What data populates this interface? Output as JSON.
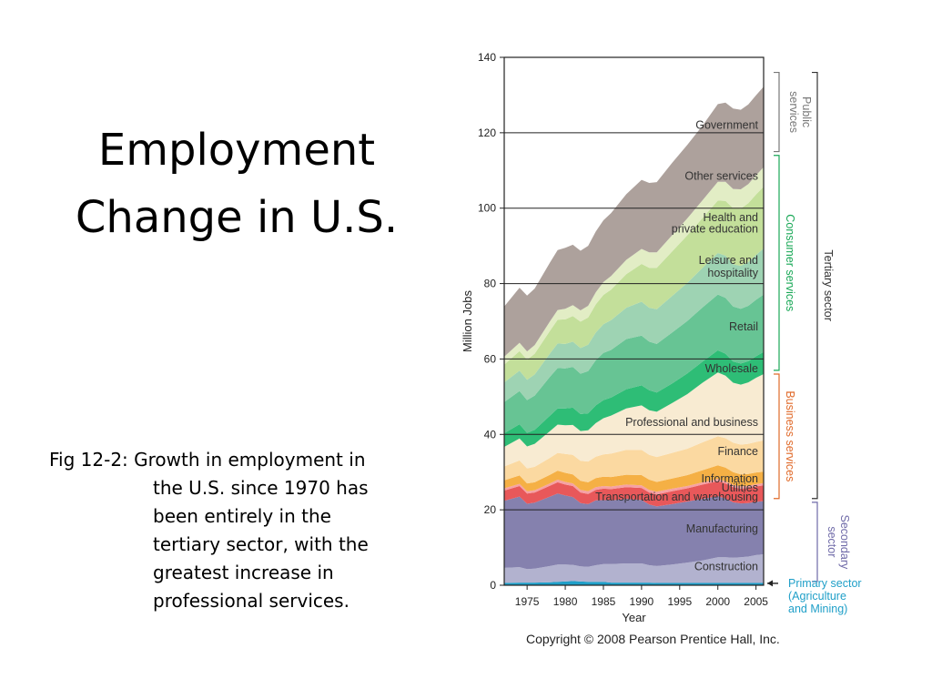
{
  "slide": {
    "title_line1": "Employment",
    "title_line2": "Change in U.S.",
    "caption": "Fig 12-2: Growth in employment in the U.S. since 1970 has been entirely in the tertiary sector, with the greatest increase in professional services.",
    "copyright": "Copyright © 2008 Pearson Prentice Hall, Inc."
  },
  "chart_data": {
    "type": "area",
    "stacked": true,
    "title": "",
    "xlabel": "Year",
    "ylabel": "Million Jobs",
    "xlim": [
      1972,
      2006
    ],
    "ylim": [
      0,
      140
    ],
    "xticks": [
      1975,
      1980,
      1985,
      1990,
      1995,
      2000,
      2005
    ],
    "yticks": [
      0,
      20,
      40,
      60,
      80,
      100,
      120,
      140
    ],
    "grid": "horizontal",
    "x": [
      1972,
      1974,
      1975,
      1976,
      1978,
      1979,
      1980,
      1981,
      1982,
      1983,
      1984,
      1985,
      1986,
      1988,
      1990,
      1991,
      1992,
      1994,
      1996,
      1998,
      2000,
      2001,
      2002,
      2003,
      2004,
      2005,
      2006
    ],
    "series": [
      {
        "name": "Primary sector (Agriculture and Mining)",
        "color": "#1f9fc8",
        "values": [
          0.6,
          0.7,
          0.7,
          0.7,
          0.8,
          0.9,
          1.0,
          1.1,
          1.0,
          0.9,
          0.9,
          0.9,
          0.7,
          0.7,
          0.7,
          0.7,
          0.6,
          0.6,
          0.6,
          0.6,
          0.6,
          0.6,
          0.6,
          0.6,
          0.6,
          0.6,
          0.6
        ]
      },
      {
        "name": "Construction",
        "color": "#b2b2cf",
        "values": [
          4.0,
          4.1,
          3.6,
          3.7,
          4.3,
          4.6,
          4.5,
          4.3,
          4.0,
          4.0,
          4.4,
          4.7,
          4.9,
          5.1,
          5.1,
          4.6,
          4.5,
          4.9,
          5.4,
          6.0,
          6.8,
          6.8,
          6.7,
          6.8,
          7.0,
          7.4,
          7.6
        ]
      },
      {
        "name": "Manufacturing",
        "color": "#8581ae",
        "values": [
          17.8,
          18.7,
          17.3,
          17.5,
          18.4,
          18.8,
          18.3,
          18.0,
          16.8,
          16.6,
          17.2,
          17.0,
          16.9,
          17.1,
          16.8,
          16.1,
          15.8,
          16.0,
          16.2,
          16.3,
          16.2,
          15.6,
          14.7,
          14.3,
          14.2,
          14.1,
          14.1
        ]
      },
      {
        "name": "Transportation and warehousing",
        "color": "#e8585a",
        "values": [
          2.7,
          2.8,
          2.7,
          2.7,
          2.9,
          3.0,
          2.9,
          2.9,
          2.8,
          2.7,
          2.8,
          3.0,
          3.0,
          3.1,
          3.2,
          3.2,
          3.2,
          3.4,
          3.5,
          3.8,
          4.0,
          4.0,
          4.0,
          3.9,
          4.0,
          4.1,
          4.2
        ]
      },
      {
        "name": "Utilities",
        "color": "#f6a1a4",
        "values": [
          0.6,
          0.6,
          0.6,
          0.6,
          0.6,
          0.7,
          0.7,
          0.7,
          0.7,
          0.7,
          0.7,
          0.7,
          0.7,
          0.7,
          0.7,
          0.7,
          0.7,
          0.7,
          0.6,
          0.6,
          0.6,
          0.6,
          0.6,
          0.6,
          0.6,
          0.6,
          0.6
        ]
      },
      {
        "name": "Information",
        "color": "#f5b045",
        "values": [
          2.1,
          2.2,
          2.1,
          2.1,
          2.3,
          2.4,
          2.4,
          2.4,
          2.4,
          2.4,
          2.4,
          2.5,
          2.5,
          2.6,
          2.7,
          2.7,
          2.6,
          2.7,
          2.9,
          3.2,
          3.6,
          3.6,
          3.4,
          3.2,
          3.1,
          3.1,
          3.0
        ]
      },
      {
        "name": "Finance",
        "color": "#fbd9a1",
        "values": [
          3.7,
          4.0,
          4.0,
          4.1,
          4.5,
          4.7,
          5.0,
          5.2,
          5.3,
          5.5,
          5.7,
          5.9,
          6.2,
          6.6,
          6.7,
          6.6,
          6.6,
          6.8,
          7.0,
          7.4,
          7.7,
          7.8,
          7.8,
          7.9,
          8.0,
          8.1,
          8.3
        ]
      },
      {
        "name": "Professional and business",
        "color": "#f8ebd2",
        "values": [
          5.2,
          5.8,
          5.8,
          6.1,
          7.1,
          7.5,
          7.6,
          7.9,
          7.9,
          8.3,
          8.9,
          9.6,
          10.1,
          11.0,
          11.8,
          11.8,
          12.0,
          13.2,
          14.5,
          15.8,
          16.9,
          16.6,
          15.9,
          15.9,
          16.3,
          17.0,
          17.6
        ]
      },
      {
        "name": "Wholesale",
        "color": "#2ebd76",
        "values": [
          3.6,
          3.8,
          3.6,
          3.7,
          4.1,
          4.3,
          4.5,
          4.6,
          4.5,
          4.5,
          4.7,
          4.8,
          4.8,
          5.1,
          5.3,
          5.3,
          5.1,
          5.2,
          5.5,
          5.6,
          5.9,
          5.8,
          5.6,
          5.6,
          5.6,
          5.7,
          5.9
        ]
      },
      {
        "name": "Retail",
        "color": "#67c494",
        "values": [
          8.3,
          8.8,
          8.7,
          9.1,
          10.3,
          10.7,
          10.6,
          10.8,
          10.7,
          11.2,
          12.0,
          12.5,
          12.6,
          13.3,
          13.2,
          12.9,
          12.9,
          13.5,
          13.9,
          14.4,
          14.8,
          14.8,
          14.6,
          14.5,
          14.7,
          15.0,
          15.2
        ]
      },
      {
        "name": "Leisure and hospitality",
        "color": "#9ed3b3",
        "values": [
          5.2,
          5.4,
          5.4,
          5.6,
          6.2,
          6.5,
          6.5,
          6.7,
          6.8,
          7.0,
          7.3,
          7.6,
          7.9,
          8.3,
          9.0,
          9.0,
          9.2,
          9.7,
          10.1,
          10.5,
          11.0,
          11.2,
          11.2,
          11.4,
          11.6,
          11.9,
          12.2
        ]
      },
      {
        "name": "Health and private education",
        "color": "#c3df9a",
        "values": [
          4.7,
          5.2,
          5.3,
          5.5,
          6.0,
          6.3,
          6.5,
          6.8,
          7.0,
          7.2,
          7.5,
          7.8,
          8.1,
          8.9,
          10.0,
          10.6,
          11.0,
          11.8,
          12.6,
          13.2,
          13.9,
          14.5,
          14.9,
          15.2,
          15.6,
          16.0,
          16.4
        ]
      },
      {
        "name": "Other services",
        "color": "#e2edc5",
        "values": [
          2.1,
          2.2,
          2.2,
          2.3,
          2.5,
          2.6,
          2.8,
          2.9,
          3.0,
          3.1,
          3.2,
          3.4,
          3.6,
          3.8,
          4.0,
          4.1,
          4.1,
          4.3,
          4.5,
          4.7,
          5.0,
          5.1,
          5.1,
          5.1,
          5.1,
          5.1,
          5.2
        ]
      },
      {
        "name": "Government",
        "color": "#ada19c",
        "values": [
          13.3,
          14.6,
          14.8,
          15.0,
          15.6,
          15.9,
          16.2,
          16.0,
          15.8,
          15.9,
          16.1,
          16.4,
          16.7,
          17.4,
          18.3,
          18.4,
          18.6,
          19.2,
          19.5,
          19.8,
          20.6,
          21.0,
          21.3,
          21.1,
          21.1,
          21.2,
          21.3
        ]
      }
    ],
    "labels": [
      {
        "text": "Government",
        "color": "#333333"
      },
      {
        "text": "Other services",
        "color": "#333333"
      },
      {
        "text": "Health and",
        "color": "#333333"
      },
      {
        "text": "private education",
        "color": "#333333"
      },
      {
        "text": "Leisure and",
        "color": "#333333"
      },
      {
        "text": "hospitality",
        "color": "#333333"
      },
      {
        "text": "Retail",
        "color": "#333333"
      },
      {
        "text": "Wholesale",
        "color": "#333333"
      },
      {
        "text": "Professional and business",
        "color": "#333333"
      },
      {
        "text": "Finance",
        "color": "#333333"
      },
      {
        "text": "Information",
        "color": "#333333"
      },
      {
        "text": "Utilities",
        "color": "#333333"
      },
      {
        "text": "Transportation and warehousing",
        "color": "#333333"
      },
      {
        "text": "Manufacturing",
        "color": "#333333"
      },
      {
        "text": "Construction",
        "color": "#333333"
      }
    ],
    "brackets": [
      {
        "text": "Public",
        "text2": "services",
        "from": 115,
        "to": 136,
        "color": "#777777"
      },
      {
        "text": "Consumer services",
        "text2": "",
        "from": 57,
        "to": 114,
        "color": "#1aa857"
      },
      {
        "text": "Business services",
        "text2": "",
        "from": 23,
        "to": 56,
        "color": "#e06a2a"
      },
      {
        "text": "Tertiary sector",
        "text2": "",
        "from": 23,
        "to": 136,
        "color": "#333333"
      },
      {
        "text": "Secondary",
        "text2": "sector",
        "from": 1,
        "to": 22,
        "color": "#6f6aa8"
      }
    ],
    "primary_note": {
      "line1": "Primary sector",
      "line2": "(Agriculture",
      "line3": "and Mining)",
      "color": "#1f9fc8"
    }
  }
}
